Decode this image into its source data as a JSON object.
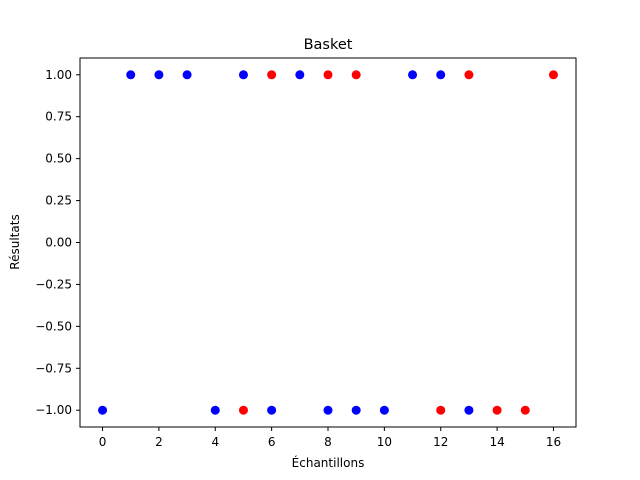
{
  "chart_data": {
    "type": "scatter",
    "title": "Basket",
    "xlabel": "Échantillons",
    "ylabel": "Résultats",
    "xlim": [
      -0.8,
      16.8
    ],
    "ylim": [
      -1.1,
      1.1
    ],
    "xticks": [
      0,
      2,
      4,
      6,
      8,
      10,
      12,
      14,
      16
    ],
    "xtick_labels": [
      "0",
      "2",
      "4",
      "6",
      "8",
      "10",
      "12",
      "14",
      "16"
    ],
    "yticks": [
      -1.0,
      -0.75,
      -0.5,
      -0.25,
      0.0,
      0.25,
      0.5,
      0.75,
      1.0
    ],
    "ytick_labels": [
      "−1.00",
      "−0.75",
      "−0.50",
      "−0.25",
      "0.00",
      "0.25",
      "0.50",
      "0.75",
      "1.00"
    ],
    "grid": false,
    "series": [
      {
        "color": "#0000ff",
        "points": [
          {
            "x": 0,
            "y": -1
          },
          {
            "x": 1,
            "y": 1
          },
          {
            "x": 2,
            "y": 1
          },
          {
            "x": 3,
            "y": 1
          },
          {
            "x": 4,
            "y": -1
          },
          {
            "x": 5,
            "y": 1
          },
          {
            "x": 6,
            "y": -1
          },
          {
            "x": 7,
            "y": 1
          },
          {
            "x": 8,
            "y": -1
          },
          {
            "x": 9,
            "y": -1
          },
          {
            "x": 10,
            "y": -1
          },
          {
            "x": 11,
            "y": 1
          },
          {
            "x": 12,
            "y": 1
          },
          {
            "x": 13,
            "y": -1
          }
        ]
      },
      {
        "color": "#ff0000",
        "points": [
          {
            "x": 5,
            "y": -1
          },
          {
            "x": 6,
            "y": 1
          },
          {
            "x": 8,
            "y": 1
          },
          {
            "x": 9,
            "y": 1
          },
          {
            "x": 12,
            "y": -1
          },
          {
            "x": 13,
            "y": 1
          },
          {
            "x": 14,
            "y": -1
          },
          {
            "x": 15,
            "y": -1
          },
          {
            "x": 16,
            "y": 1
          }
        ]
      }
    ]
  }
}
